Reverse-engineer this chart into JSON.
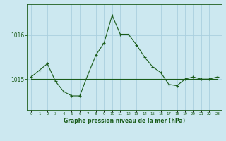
{
  "title": "Graphe pression niveau de la mer (hPa)",
  "bg_color": "#cce8f0",
  "grid_color": "#aacfdf",
  "line_color": "#1a5c1a",
  "ylim": [
    1014.3,
    1016.7
  ],
  "yticks": [
    1015,
    1016
  ],
  "xlim": [
    -0.5,
    23.5
  ],
  "y_main": [
    1015.05,
    1015.2,
    1015.35,
    1014.95,
    1014.72,
    1014.62,
    1014.62,
    1015.1,
    1015.55,
    1015.82,
    1016.45,
    1016.02,
    1016.02,
    1015.78,
    1015.5,
    1015.28,
    1015.15,
    1014.88,
    1014.85,
    1015.0,
    1015.05,
    1015.0,
    1015.0,
    1015.05
  ],
  "y_flat": [
    1015.0,
    1015.0,
    1015.0,
    1015.0,
    1015.0,
    1015.0,
    1015.0,
    1015.0,
    1015.0,
    1015.0,
    1015.0,
    1015.0,
    1015.0,
    1015.0,
    1015.0,
    1015.0,
    1015.0,
    1015.0,
    1015.0,
    1015.0,
    1015.0,
    1015.0,
    1015.0,
    1015.0
  ]
}
